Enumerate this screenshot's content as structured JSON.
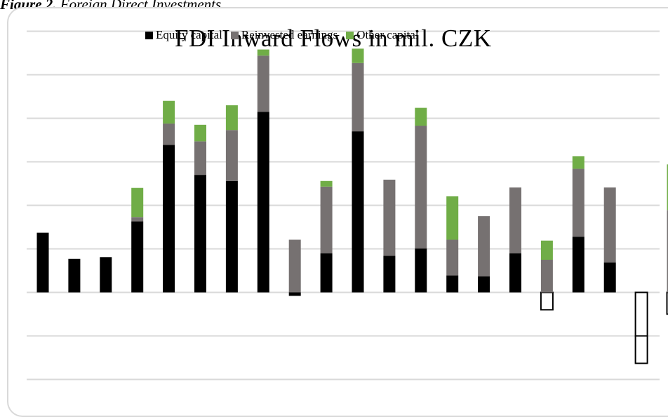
{
  "caption": {
    "label": "Figure 2.",
    "text": "Foreign Direct Investments"
  },
  "chart_data": {
    "type": "bar",
    "stacked": true,
    "title": "FDI Inward Flows in mil. CZK",
    "legend_position": "top",
    "grid": true,
    "y_ticks_printed": false,
    "ylim": [
      -2,
      6
    ],
    "categories": [
      "",
      "",
      "",
      "",
      "",
      "",
      "",
      "",
      "",
      "",
      "",
      "",
      "",
      "",
      "",
      "",
      "",
      "",
      "",
      "",
      ""
    ],
    "series": [
      {
        "name": "Equity capital",
        "color": "#000000",
        "values": [
          1.37,
          0.77,
          0.81,
          1.63,
          3.39,
          2.7,
          2.56,
          4.15,
          -0.08,
          0.9,
          3.7,
          0.84,
          1.01,
          0.39,
          0.37,
          0.9,
          -0.4,
          1.28,
          0.69,
          -1.0,
          -0.5
        ]
      },
      {
        "name": "Reinvested earnings",
        "color": "#767171",
        "values": [
          0,
          0,
          0,
          0.1,
          0.49,
          0.77,
          1.17,
          1.29,
          1.21,
          1.53,
          1.57,
          1.75,
          2.82,
          0.82,
          1.38,
          1.51,
          0.75,
          1.56,
          1.72,
          0,
          1.89
        ]
      },
      {
        "name": "Other capital",
        "color": "#70ad47",
        "values": [
          0,
          0,
          0,
          0.67,
          0.52,
          0.38,
          0.57,
          0.14,
          0,
          0.13,
          0.33,
          0,
          0.41,
          1.0,
          0,
          0,
          0.44,
          0.29,
          0,
          -0.63,
          1.05
        ]
      }
    ]
  }
}
